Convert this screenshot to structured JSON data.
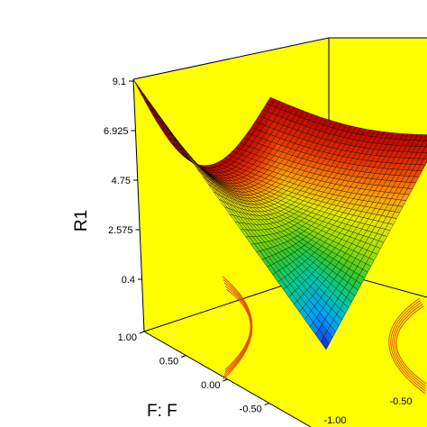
{
  "chart_data": {
    "type": "surface3d",
    "title": "",
    "zlabel": "R1",
    "xlabel": "F: F",
    "zlim": [
      0.4,
      9.1
    ],
    "z_ticks": [
      "9.1",
      "6.925",
      "4.75",
      "2.575",
      "0.4"
    ],
    "x_ticks": [
      "1.00",
      "0.50",
      "0.00",
      "-0.50",
      "-1.00"
    ],
    "y_ticks_visible": [
      "-1.00",
      "-0.50"
    ],
    "surface": {
      "description": "V-shaped response surface, minimum near the front-bottom corner, maximum at the back corners",
      "z_min": 0.4,
      "z_max": 9.1,
      "colormap": [
        "#1e1ec8",
        "#00a0ff",
        "#00c8a0",
        "#32c832",
        "#a0e000",
        "#e6e600",
        "#ff9600",
        "#e63200",
        "#b40000"
      ]
    },
    "contour_color": "#e05000",
    "colors": {
      "box_floor": "#ffff00",
      "box_back": "#ffff00",
      "box_side": "#eaea00",
      "box_edges": "#000000",
      "surface_mesh": "#000000"
    }
  }
}
